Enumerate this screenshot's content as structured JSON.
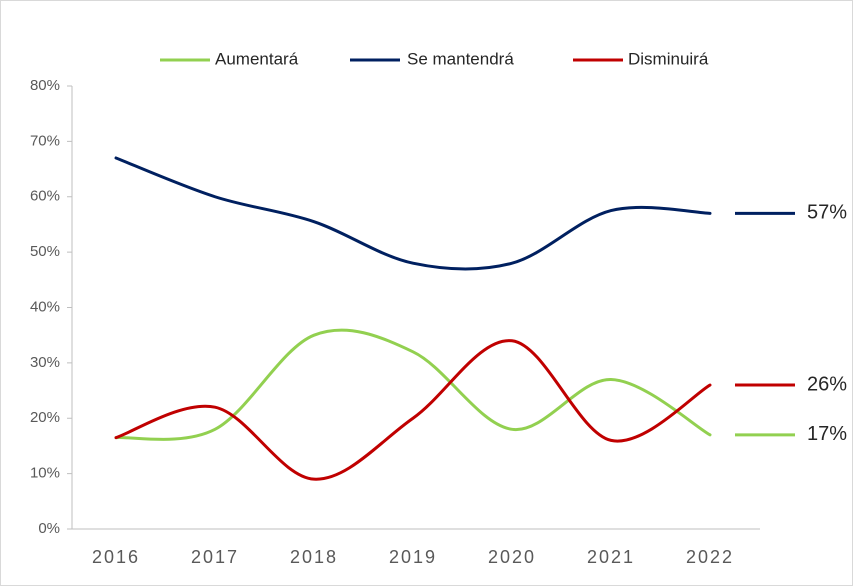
{
  "chart_data": {
    "type": "line",
    "categories": [
      "2016",
      "2017",
      "2018",
      "2019",
      "2020",
      "2021",
      "2022"
    ],
    "series": [
      {
        "name": "Aumentará",
        "color": "#92d050",
        "values": [
          16.5,
          18,
          35,
          32,
          18,
          27,
          17
        ],
        "value_labels": [
          null,
          null,
          null,
          null,
          null,
          null,
          "17%"
        ]
      },
      {
        "name": "Se mantendrá",
        "color": "#002060",
        "values": [
          67,
          60,
          55.5,
          48,
          48,
          57.5,
          57
        ],
        "value_labels": [
          null,
          null,
          null,
          null,
          null,
          null,
          "57%"
        ]
      },
      {
        "name": "Disminuirá",
        "color": "#c00000",
        "values": [
          16.5,
          22,
          9,
          20,
          34,
          16,
          26
        ],
        "value_labels": [
          null,
          null,
          null,
          null,
          null,
          null,
          "26%"
        ]
      }
    ],
    "ylim": [
      0,
      80
    ],
    "yticks": [
      {
        "value": 0,
        "label": "0%"
      },
      {
        "value": 10,
        "label": "10%"
      },
      {
        "value": 20,
        "label": "20%"
      },
      {
        "value": 30,
        "label": "30%"
      },
      {
        "value": 40,
        "label": "40%"
      },
      {
        "value": 50,
        "label": "50%"
      },
      {
        "value": 60,
        "label": "60%"
      },
      {
        "value": 70,
        "label": "70%"
      },
      {
        "value": 80,
        "label": "80%"
      }
    ],
    "grid": false,
    "smooth": true,
    "legend": "top"
  }
}
